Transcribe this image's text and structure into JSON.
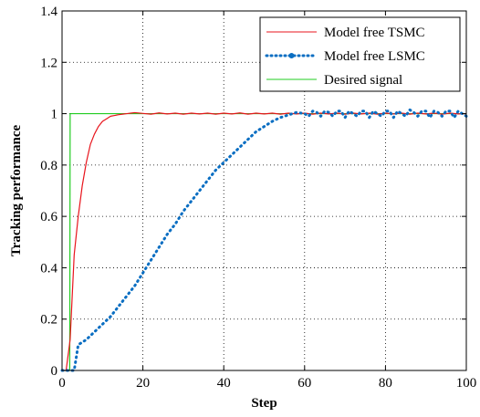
{
  "chart_data": {
    "type": "line",
    "xlabel": "Step",
    "ylabel": "Tracking performance",
    "xlim": [
      0,
      100
    ],
    "ylim": [
      0,
      1.4
    ],
    "x_ticks": [
      0,
      20,
      40,
      60,
      80,
      100
    ],
    "y_ticks": [
      0,
      0.2,
      0.4,
      0.6,
      0.8,
      1,
      1.2,
      1.4
    ],
    "grid": true,
    "legend_position": "top-right",
    "series": [
      {
        "name": "Model free TSMC",
        "color": "#e8141c",
        "style": "solid",
        "x": [
          0,
          1,
          2,
          3,
          4,
          5,
          6,
          7,
          8,
          9,
          10,
          11,
          12,
          13,
          14,
          15,
          16,
          17,
          18,
          20,
          22,
          24,
          26,
          28,
          30,
          32,
          34,
          36,
          38,
          40,
          42,
          44,
          46,
          48,
          50,
          52,
          54,
          56,
          58,
          60,
          62,
          64,
          66,
          68,
          70,
          72,
          74,
          76,
          78,
          80,
          82,
          84,
          86,
          88,
          90,
          92,
          94,
          96,
          98,
          100
        ],
        "values": [
          0,
          0,
          0.12,
          0.45,
          0.6,
          0.72,
          0.81,
          0.88,
          0.92,
          0.95,
          0.97,
          0.98,
          0.99,
          0.993,
          0.996,
          0.998,
          1.0,
          1.002,
          1.004,
          1.001,
          0.998,
          1.003,
          0.999,
          1.002,
          0.998,
          1.002,
          0.999,
          1.002,
          0.998,
          1.002,
          0.999,
          1.003,
          0.998,
          1.002,
          0.999,
          1.002,
          0.998,
          1.002,
          0.999,
          1.002,
          0.998,
          1.002,
          0.999,
          1.002,
          0.998,
          1.002,
          0.999,
          1.002,
          0.998,
          1.002,
          0.999,
          1.002,
          0.998,
          1.002,
          0.999,
          1.002,
          0.998,
          1.002,
          0.999,
          1.0
        ]
      },
      {
        "name": "Model free LSMC",
        "color": "#0a6ec2",
        "style": "dotted",
        "x": [
          0,
          1,
          2,
          3,
          4,
          5,
          6,
          8,
          10,
          12,
          14,
          16,
          18,
          20,
          22,
          24,
          26,
          28,
          30,
          32,
          34,
          36,
          38,
          40,
          42,
          44,
          46,
          48,
          50,
          52,
          54,
          56,
          58,
          60,
          61,
          62,
          63,
          64,
          65,
          66,
          67,
          68,
          69,
          70,
          71,
          72,
          73,
          74,
          75,
          76,
          77,
          78,
          79,
          80,
          81,
          82,
          83,
          84,
          85,
          86,
          87,
          88,
          89,
          90,
          91,
          92,
          93,
          94,
          95,
          96,
          97,
          98,
          99,
          100
        ],
        "values": [
          0,
          0,
          0.0,
          0.0,
          0.1,
          0.11,
          0.12,
          0.15,
          0.18,
          0.21,
          0.25,
          0.29,
          0.33,
          0.38,
          0.43,
          0.48,
          0.53,
          0.57,
          0.62,
          0.66,
          0.7,
          0.74,
          0.78,
          0.81,
          0.84,
          0.87,
          0.9,
          0.93,
          0.95,
          0.97,
          0.985,
          0.995,
          1.005,
          1.0,
          0.99,
          1.01,
          1.005,
          0.99,
          1.01,
          1.005,
          0.99,
          1.01,
          1.01,
          0.985,
          1.01,
          1.0,
          0.99,
          1.01,
          1.01,
          0.985,
          1.01,
          1.0,
          0.99,
          1.01,
          1.01,
          0.985,
          1.01,
          1.0,
          0.99,
          1.015,
          1.005,
          0.99,
          1.01,
          1.01,
          0.985,
          1.01,
          1.005,
          0.99,
          1.01,
          1.01,
          0.985,
          1.01,
          1.0,
          0.99
        ]
      },
      {
        "name": "Desired signal",
        "color": "#22cc22",
        "style": "solid",
        "x": [
          0,
          1.9,
          2.0,
          100
        ],
        "values": [
          0,
          0,
          1,
          1
        ]
      }
    ]
  }
}
